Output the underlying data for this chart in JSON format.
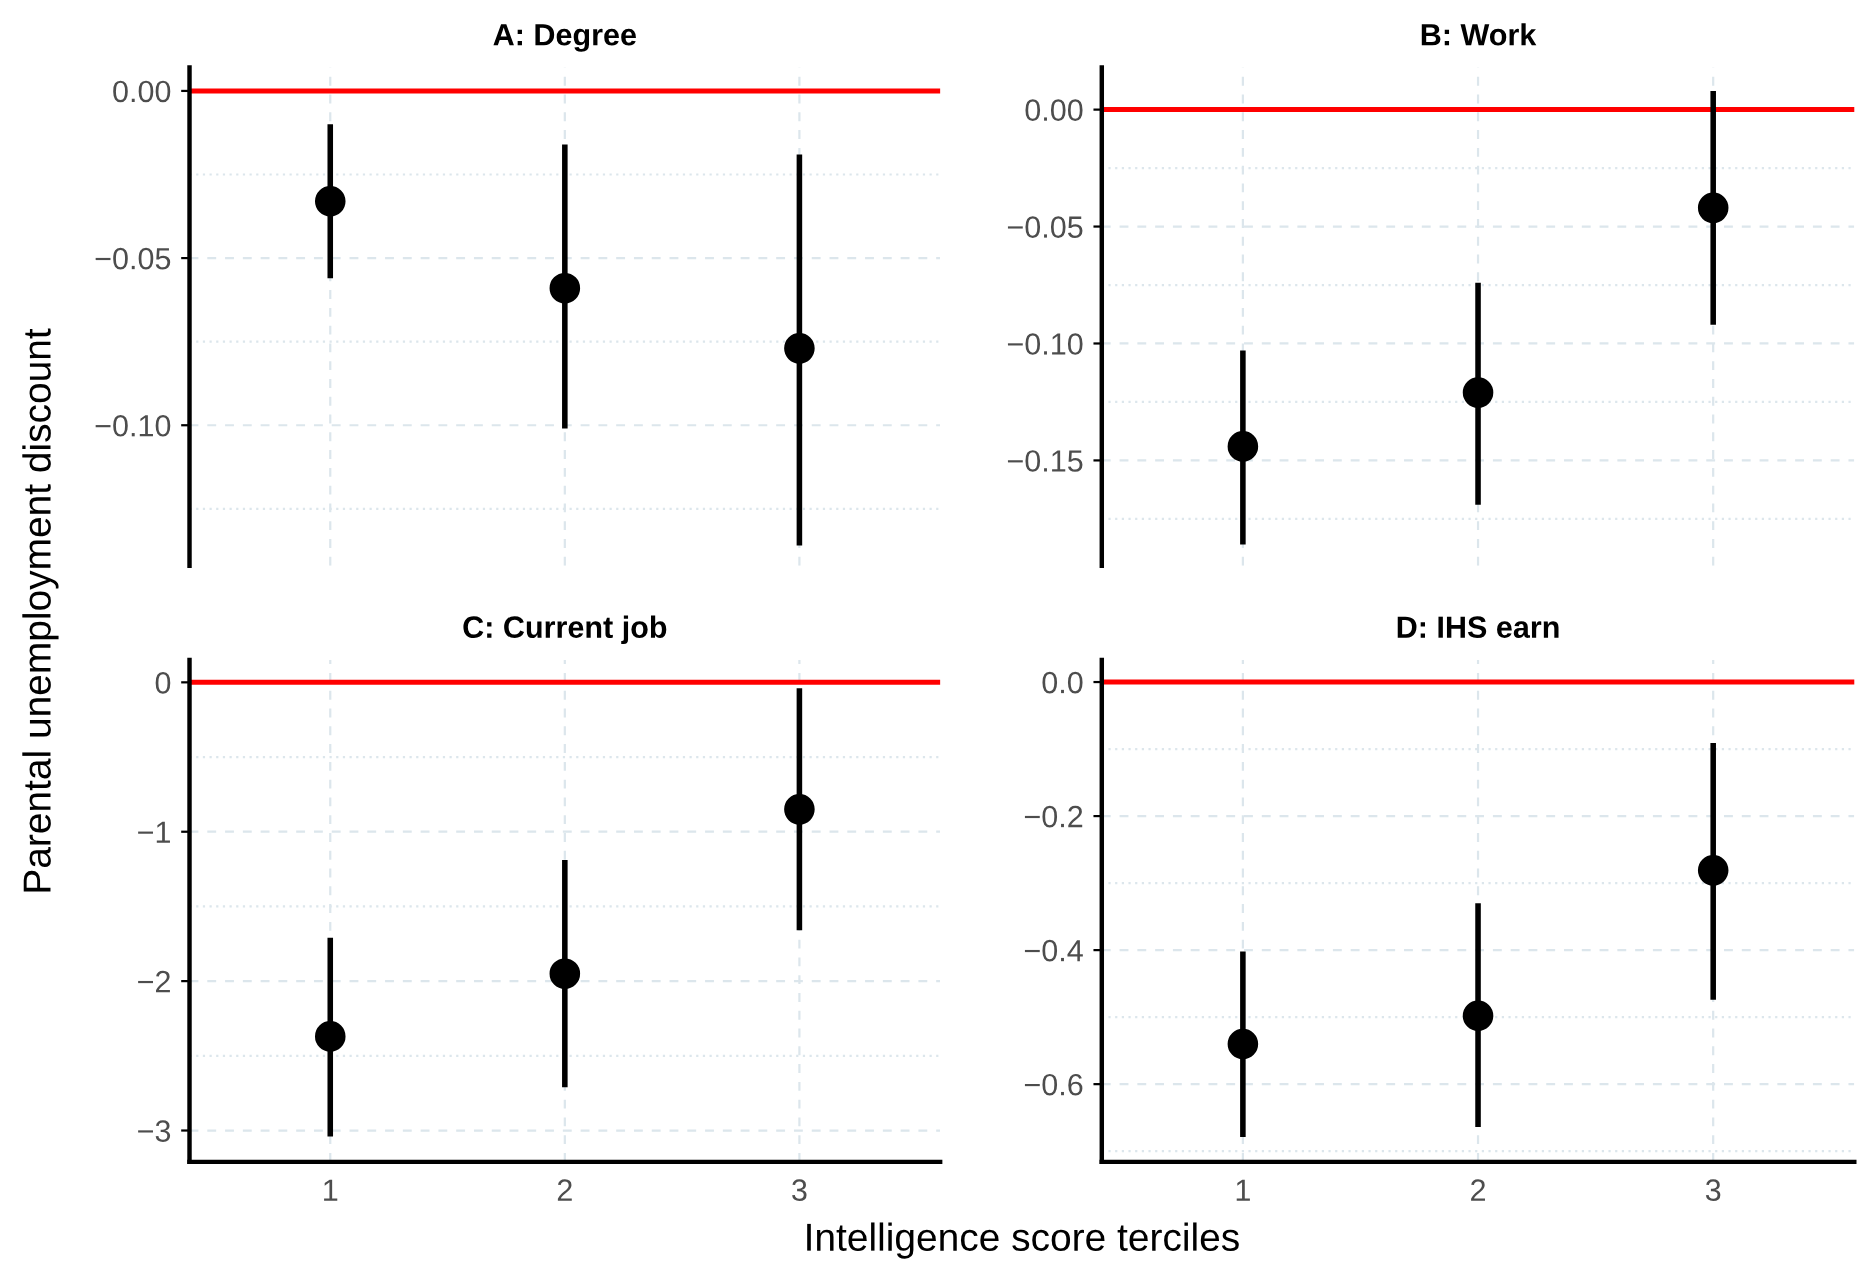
{
  "chart_data": [
    {
      "type": "scatter",
      "title": "A: Degree",
      "xlabel": "Intelligence score terciles",
      "ylabel": "Parental unemployment discount",
      "x": [
        1,
        2,
        3
      ],
      "xlim": [
        0.4,
        3.6
      ],
      "xticks": [
        1,
        2,
        3
      ],
      "tick_labels": "y",
      "ylim": [
        -0.142,
        0.007
      ],
      "yticks": [
        {
          "value": -0.125,
          "label": null
        },
        {
          "value": -0.1,
          "label": "−0.10"
        },
        {
          "value": -0.075,
          "label": null
        },
        {
          "value": -0.05,
          "label": "−0.05"
        },
        {
          "value": -0.025,
          "label": null
        },
        {
          "value": 0,
          "label": "0.00"
        }
      ],
      "grid": true,
      "marker": "circle",
      "series": [
        {
          "color": "#000000",
          "values": [
            -0.033,
            -0.059,
            -0.077
          ],
          "errors": [
            [
              -0.056,
              -0.01
            ],
            [
              -0.101,
              -0.016
            ],
            [
              -0.136,
              -0.019
            ]
          ]
        }
      ],
      "ref_lines": [
        {
          "axis": "y",
          "value": 0,
          "color": "#ff0000"
        }
      ]
    },
    {
      "type": "scatter",
      "title": "B: Work",
      "x": [
        1,
        2,
        3
      ],
      "xlim": [
        0.4,
        3.6
      ],
      "xticks": [
        1,
        2,
        3
      ],
      "tick_labels": "y",
      "ylim": [
        -0.195,
        0.018
      ],
      "yticks": [
        {
          "value": -0.175,
          "label": null
        },
        {
          "value": -0.15,
          "label": "−0.15"
        },
        {
          "value": -0.125,
          "label": null
        },
        {
          "value": -0.1,
          "label": "−0.10"
        },
        {
          "value": -0.075,
          "label": null
        },
        {
          "value": -0.05,
          "label": "−0.05"
        },
        {
          "value": -0.025,
          "label": null
        },
        {
          "value": 0,
          "label": "0.00"
        }
      ],
      "grid": true,
      "marker": "circle",
      "series": [
        {
          "color": "#000000",
          "values": [
            -0.144,
            -0.121,
            -0.042
          ],
          "errors": [
            [
              -0.186,
              -0.103
            ],
            [
              -0.169,
              -0.074
            ],
            [
              -0.092,
              0.008
            ]
          ]
        }
      ],
      "ref_lines": [
        {
          "axis": "y",
          "value": 0,
          "color": "#ff0000"
        }
      ]
    },
    {
      "type": "scatter",
      "title": "C: Current job",
      "x": [
        1,
        2,
        3
      ],
      "xlim": [
        0.4,
        3.6
      ],
      "xticks": [
        1,
        2,
        3
      ],
      "ylim": [
        -3.21,
        0.15
      ],
      "yticks": [
        {
          "value": -3,
          "label": "−3"
        },
        {
          "value": -2.5,
          "label": null
        },
        {
          "value": -2,
          "label": "−2"
        },
        {
          "value": -1.5,
          "label": null
        },
        {
          "value": -1,
          "label": "−1"
        },
        {
          "value": -0.5,
          "label": null
        },
        {
          "value": 0,
          "label": "0"
        }
      ],
      "grid": true,
      "marker": "circle",
      "series": [
        {
          "color": "#000000",
          "values": [
            -2.37,
            -1.95,
            -0.85
          ],
          "errors": [
            [
              -3.04,
              -1.71
            ],
            [
              -2.71,
              -1.19
            ],
            [
              -1.66,
              -0.04
            ]
          ]
        }
      ],
      "ref_lines": [
        {
          "axis": "y",
          "value": 0,
          "color": "#ff0000"
        }
      ]
    },
    {
      "type": "scatter",
      "title": "D: IHS earn",
      "x": [
        1,
        2,
        3
      ],
      "xlim": [
        0.4,
        3.6
      ],
      "xticks": [
        1,
        2,
        3
      ],
      "ylim": [
        -0.716,
        0.033
      ],
      "yticks": [
        {
          "value": -0.7,
          "label": null
        },
        {
          "value": -0.6,
          "label": "−0.6"
        },
        {
          "value": -0.5,
          "label": null
        },
        {
          "value": -0.4,
          "label": "−0.4"
        },
        {
          "value": -0.3,
          "label": null
        },
        {
          "value": -0.2,
          "label": "−0.2"
        },
        {
          "value": -0.1,
          "label": null
        },
        {
          "value": 0,
          "label": "0.0"
        }
      ],
      "grid": true,
      "marker": "circle",
      "series": [
        {
          "color": "#000000",
          "values": [
            -0.54,
            -0.498,
            -0.281
          ],
          "errors": [
            [
              -0.679,
              -0.402
            ],
            [
              -0.664,
              -0.33
            ],
            [
              -0.474,
              -0.091
            ]
          ]
        }
      ],
      "ref_lines": [
        {
          "axis": "y",
          "value": 0,
          "color": "#ff0000"
        }
      ]
    }
  ]
}
